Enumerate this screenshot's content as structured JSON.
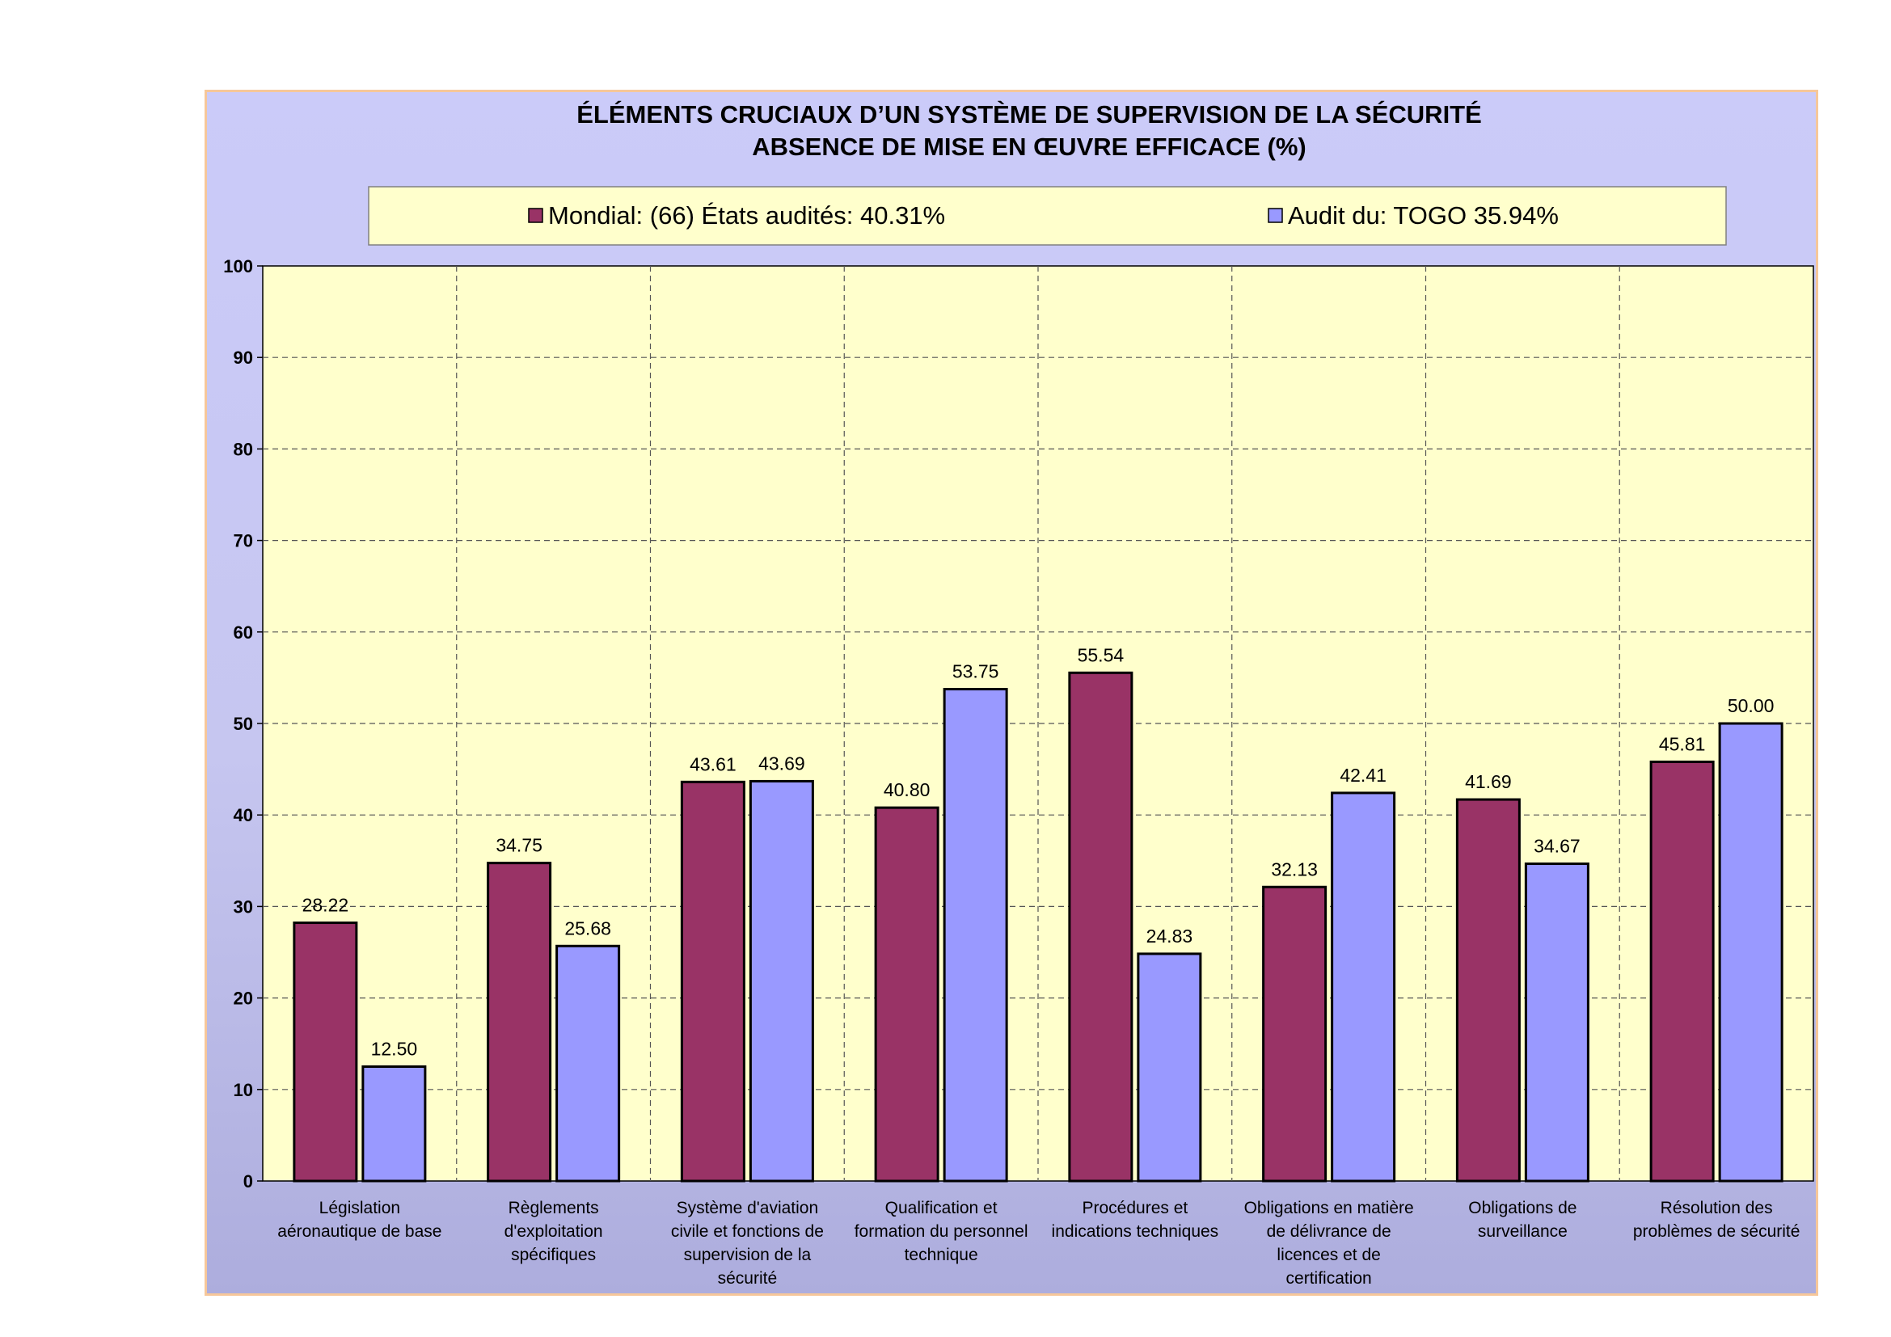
{
  "chart_data": {
    "type": "bar",
    "title_lines": [
      "ÉLÉMENTS CRUCIAUX D’UN SYSTÈME DE SUPERVISION DE LA SÉCURITÉ",
      "ABSENCE DE MISE EN ŒUVRE EFFICACE (%)"
    ],
    "categories": [
      [
        "Législation",
        "aéronautique de base"
      ],
      [
        "Règlements",
        "d'exploitation",
        "spécifiques"
      ],
      [
        "Système d'aviation",
        "civile et fonctions de",
        "supervision de la",
        "sécurité"
      ],
      [
        "Qualification et",
        "formation du personnel",
        "technique"
      ],
      [
        "Procédures et",
        "indications techniques"
      ],
      [
        "Obligations en matière",
        "de délivrance de",
        "licences et de",
        "certification"
      ],
      [
        "Obligations de",
        "surveillance"
      ],
      [
        "Résolution des",
        "problèmes de sécurité"
      ]
    ],
    "series": [
      {
        "name": "Mondial: (66) États audités:  40.31%",
        "color": "#993366",
        "values": [
          28.22,
          34.75,
          43.61,
          40.8,
          55.54,
          32.13,
          41.69,
          45.81
        ],
        "labels": [
          "28.22",
          "34.75",
          "43.61",
          "40.80",
          "55.54",
          "32.13",
          "41.69",
          "45.81"
        ]
      },
      {
        "name": "Audit du: TOGO 35.94%",
        "color": "#9999ff",
        "values": [
          12.5,
          25.68,
          43.69,
          53.75,
          24.83,
          42.41,
          34.67,
          50.0
        ],
        "labels": [
          "12.50",
          "25.68",
          "43.69",
          "53.75",
          "24.83",
          "42.41",
          "34.67",
          "50.00"
        ]
      }
    ],
    "ylim": [
      0,
      100
    ],
    "yticks": [
      "0",
      "10",
      "20",
      "30",
      "40",
      "50",
      "60",
      "70",
      "80",
      "90",
      "100"
    ],
    "grid": true,
    "legend_position": "top",
    "plot_background": "#ffffcc",
    "frame_background": "#ccccff"
  }
}
